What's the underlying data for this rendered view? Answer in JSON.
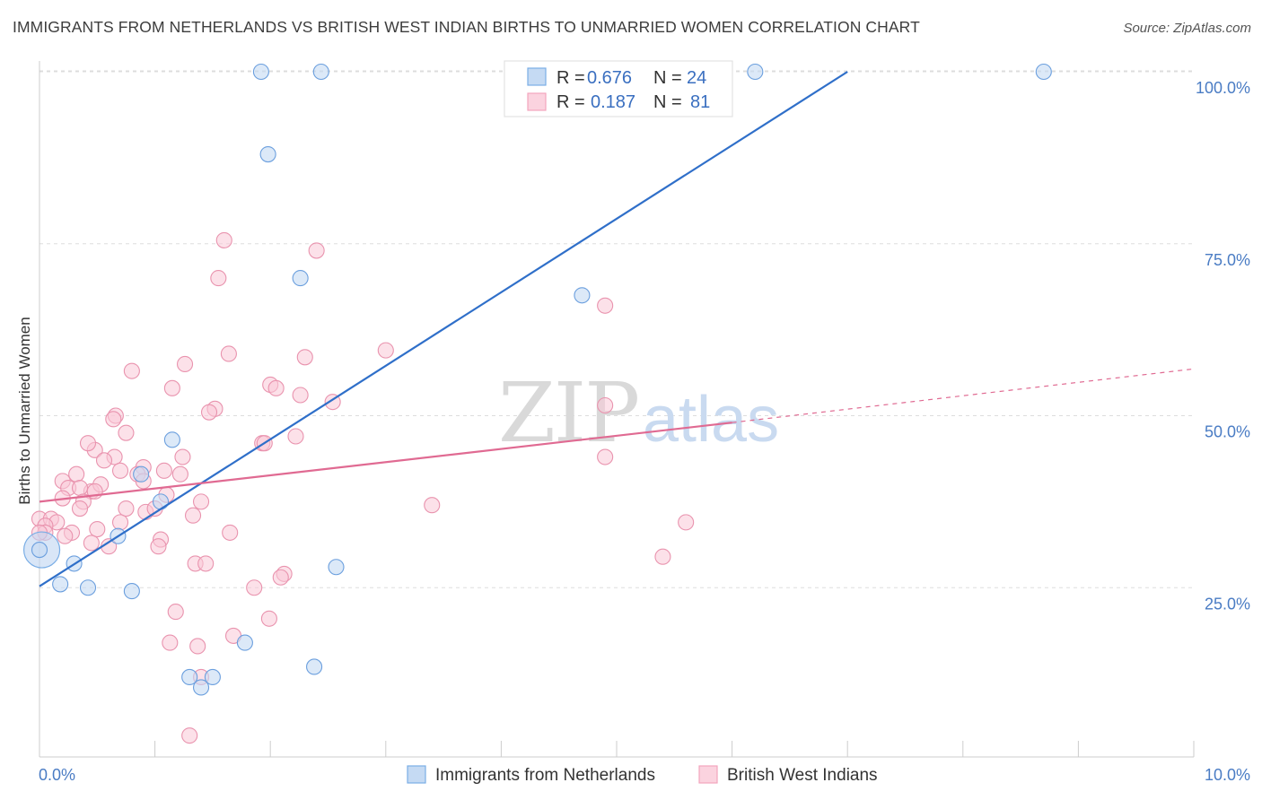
{
  "title": "IMMIGRANTS FROM NETHERLANDS VS BRITISH WEST INDIAN BIRTHS TO UNMARRIED WOMEN CORRELATION CHART",
  "source": "Source: ZipAtlas.com",
  "watermark": {
    "part1": "ZIP",
    "part2": "atlas"
  },
  "colors": {
    "blue": "#7aaee6",
    "blue_line": "#2f6fc9",
    "pink": "#f3a5bd",
    "pink_line": "#e06a92",
    "grid": "#dddddd",
    "tick_text": "#4a7cc4"
  },
  "legend": {
    "rows": [
      {
        "r_label": "R =",
        "r_value": "0.676",
        "n_label": "N =",
        "n_value": "24"
      },
      {
        "r_label": "R =",
        "r_value": "0.187",
        "n_label": "N =",
        "n_value": "81"
      }
    ]
  },
  "chart_data": {
    "type": "scatter",
    "ylabel": "Births to Unmarried Women",
    "xlim": [
      0,
      10
    ],
    "ylim": [
      0,
      105
    ],
    "x_tick_labels": [
      "0.0%",
      "10.0%"
    ],
    "y_ticks": [
      25,
      50,
      75,
      100
    ],
    "y_tick_labels": [
      "25.0%",
      "50.0%",
      "75.0%",
      "100.0%"
    ],
    "grid": true,
    "series": [
      {
        "name": "Immigrants from Netherlands",
        "color": "#7aaee6",
        "trend": {
          "x0": 0,
          "y0": 25.2,
          "x1": 7.0,
          "y1": 100
        },
        "points": [
          [
            1.92,
            100
          ],
          [
            2.44,
            100
          ],
          [
            5.3,
            100
          ],
          [
            6.2,
            100
          ],
          [
            8.7,
            100
          ],
          [
            1.98,
            88
          ],
          [
            2.26,
            70
          ],
          [
            4.7,
            67.5
          ],
          [
            1.15,
            46.5
          ],
          [
            0.88,
            41.5
          ],
          [
            1.05,
            37.5
          ],
          [
            0.0,
            30.5
          ],
          [
            0.68,
            32.5
          ],
          [
            0.3,
            28.5
          ],
          [
            0.18,
            25.5
          ],
          [
            0.42,
            25
          ],
          [
            0.8,
            24.5
          ],
          [
            2.57,
            28
          ],
          [
            1.78,
            17
          ],
          [
            2.38,
            13.5
          ],
          [
            1.3,
            12
          ],
          [
            1.5,
            12
          ],
          [
            1.4,
            10.5
          ]
        ],
        "big_point": [
          0.02,
          30.5
        ]
      },
      {
        "name": "British West Indians",
        "color": "#f3a5bd",
        "trend": {
          "x0": 0,
          "y0": 37.5,
          "x1": 6.0,
          "y1": 49,
          "dash_x1": 10,
          "dash_y1": 56.8
        },
        "points": [
          [
            1.6,
            75.5
          ],
          [
            2.4,
            74
          ],
          [
            1.55,
            70
          ],
          [
            4.9,
            66
          ],
          [
            3.0,
            59.5
          ],
          [
            1.64,
            59
          ],
          [
            2.3,
            58.5
          ],
          [
            1.26,
            57.5
          ],
          [
            0.8,
            56.5
          ],
          [
            1.15,
            54
          ],
          [
            2.0,
            54.5
          ],
          [
            2.05,
            54
          ],
          [
            2.26,
            53
          ],
          [
            2.54,
            52
          ],
          [
            1.52,
            51
          ],
          [
            1.47,
            50.5
          ],
          [
            0.66,
            50
          ],
          [
            0.64,
            49.5
          ],
          [
            4.9,
            51.5
          ],
          [
            0.75,
            47.5
          ],
          [
            2.22,
            47
          ],
          [
            1.93,
            46
          ],
          [
            1.95,
            46
          ],
          [
            0.48,
            45
          ],
          [
            0.42,
            46
          ],
          [
            0.65,
            44
          ],
          [
            4.9,
            44
          ],
          [
            0.56,
            43.5
          ],
          [
            1.24,
            44
          ],
          [
            0.9,
            42.5
          ],
          [
            0.7,
            42
          ],
          [
            1.08,
            42
          ],
          [
            0.85,
            41.5
          ],
          [
            0.9,
            40.5
          ],
          [
            1.22,
            41.5
          ],
          [
            0.32,
            41.5
          ],
          [
            0.2,
            40.5
          ],
          [
            0.25,
            39.5
          ],
          [
            0.45,
            39
          ],
          [
            0.35,
            39.5
          ],
          [
            0.53,
            40
          ],
          [
            0.48,
            39
          ],
          [
            1.1,
            38.5
          ],
          [
            0.2,
            38
          ],
          [
            0.38,
            37.5
          ],
          [
            0.35,
            36.5
          ],
          [
            1.4,
            37.5
          ],
          [
            0.75,
            36.5
          ],
          [
            0.92,
            36
          ],
          [
            1.0,
            36.5
          ],
          [
            3.4,
            37
          ],
          [
            1.33,
            35.5
          ],
          [
            0.7,
            34.5
          ],
          [
            0.0,
            35
          ],
          [
            0.1,
            35
          ],
          [
            0.15,
            34.5
          ],
          [
            0.05,
            34
          ],
          [
            0.05,
            33
          ],
          [
            0.0,
            33
          ],
          [
            0.28,
            33
          ],
          [
            0.22,
            32.5
          ],
          [
            0.5,
            33.5
          ],
          [
            1.65,
            33
          ],
          [
            5.6,
            34.5
          ],
          [
            0.45,
            31.5
          ],
          [
            1.05,
            32
          ],
          [
            1.03,
            31
          ],
          [
            0.6,
            31
          ],
          [
            5.4,
            29.5
          ],
          [
            1.35,
            28.5
          ],
          [
            1.44,
            28.5
          ],
          [
            2.12,
            27
          ],
          [
            2.09,
            26.5
          ],
          [
            1.86,
            25
          ],
          [
            1.18,
            21.5
          ],
          [
            1.99,
            20.5
          ],
          [
            1.68,
            18
          ],
          [
            1.13,
            17
          ],
          [
            1.37,
            16.5
          ],
          [
            1.4,
            12
          ],
          [
            1.3,
            3.5
          ]
        ]
      }
    ]
  }
}
